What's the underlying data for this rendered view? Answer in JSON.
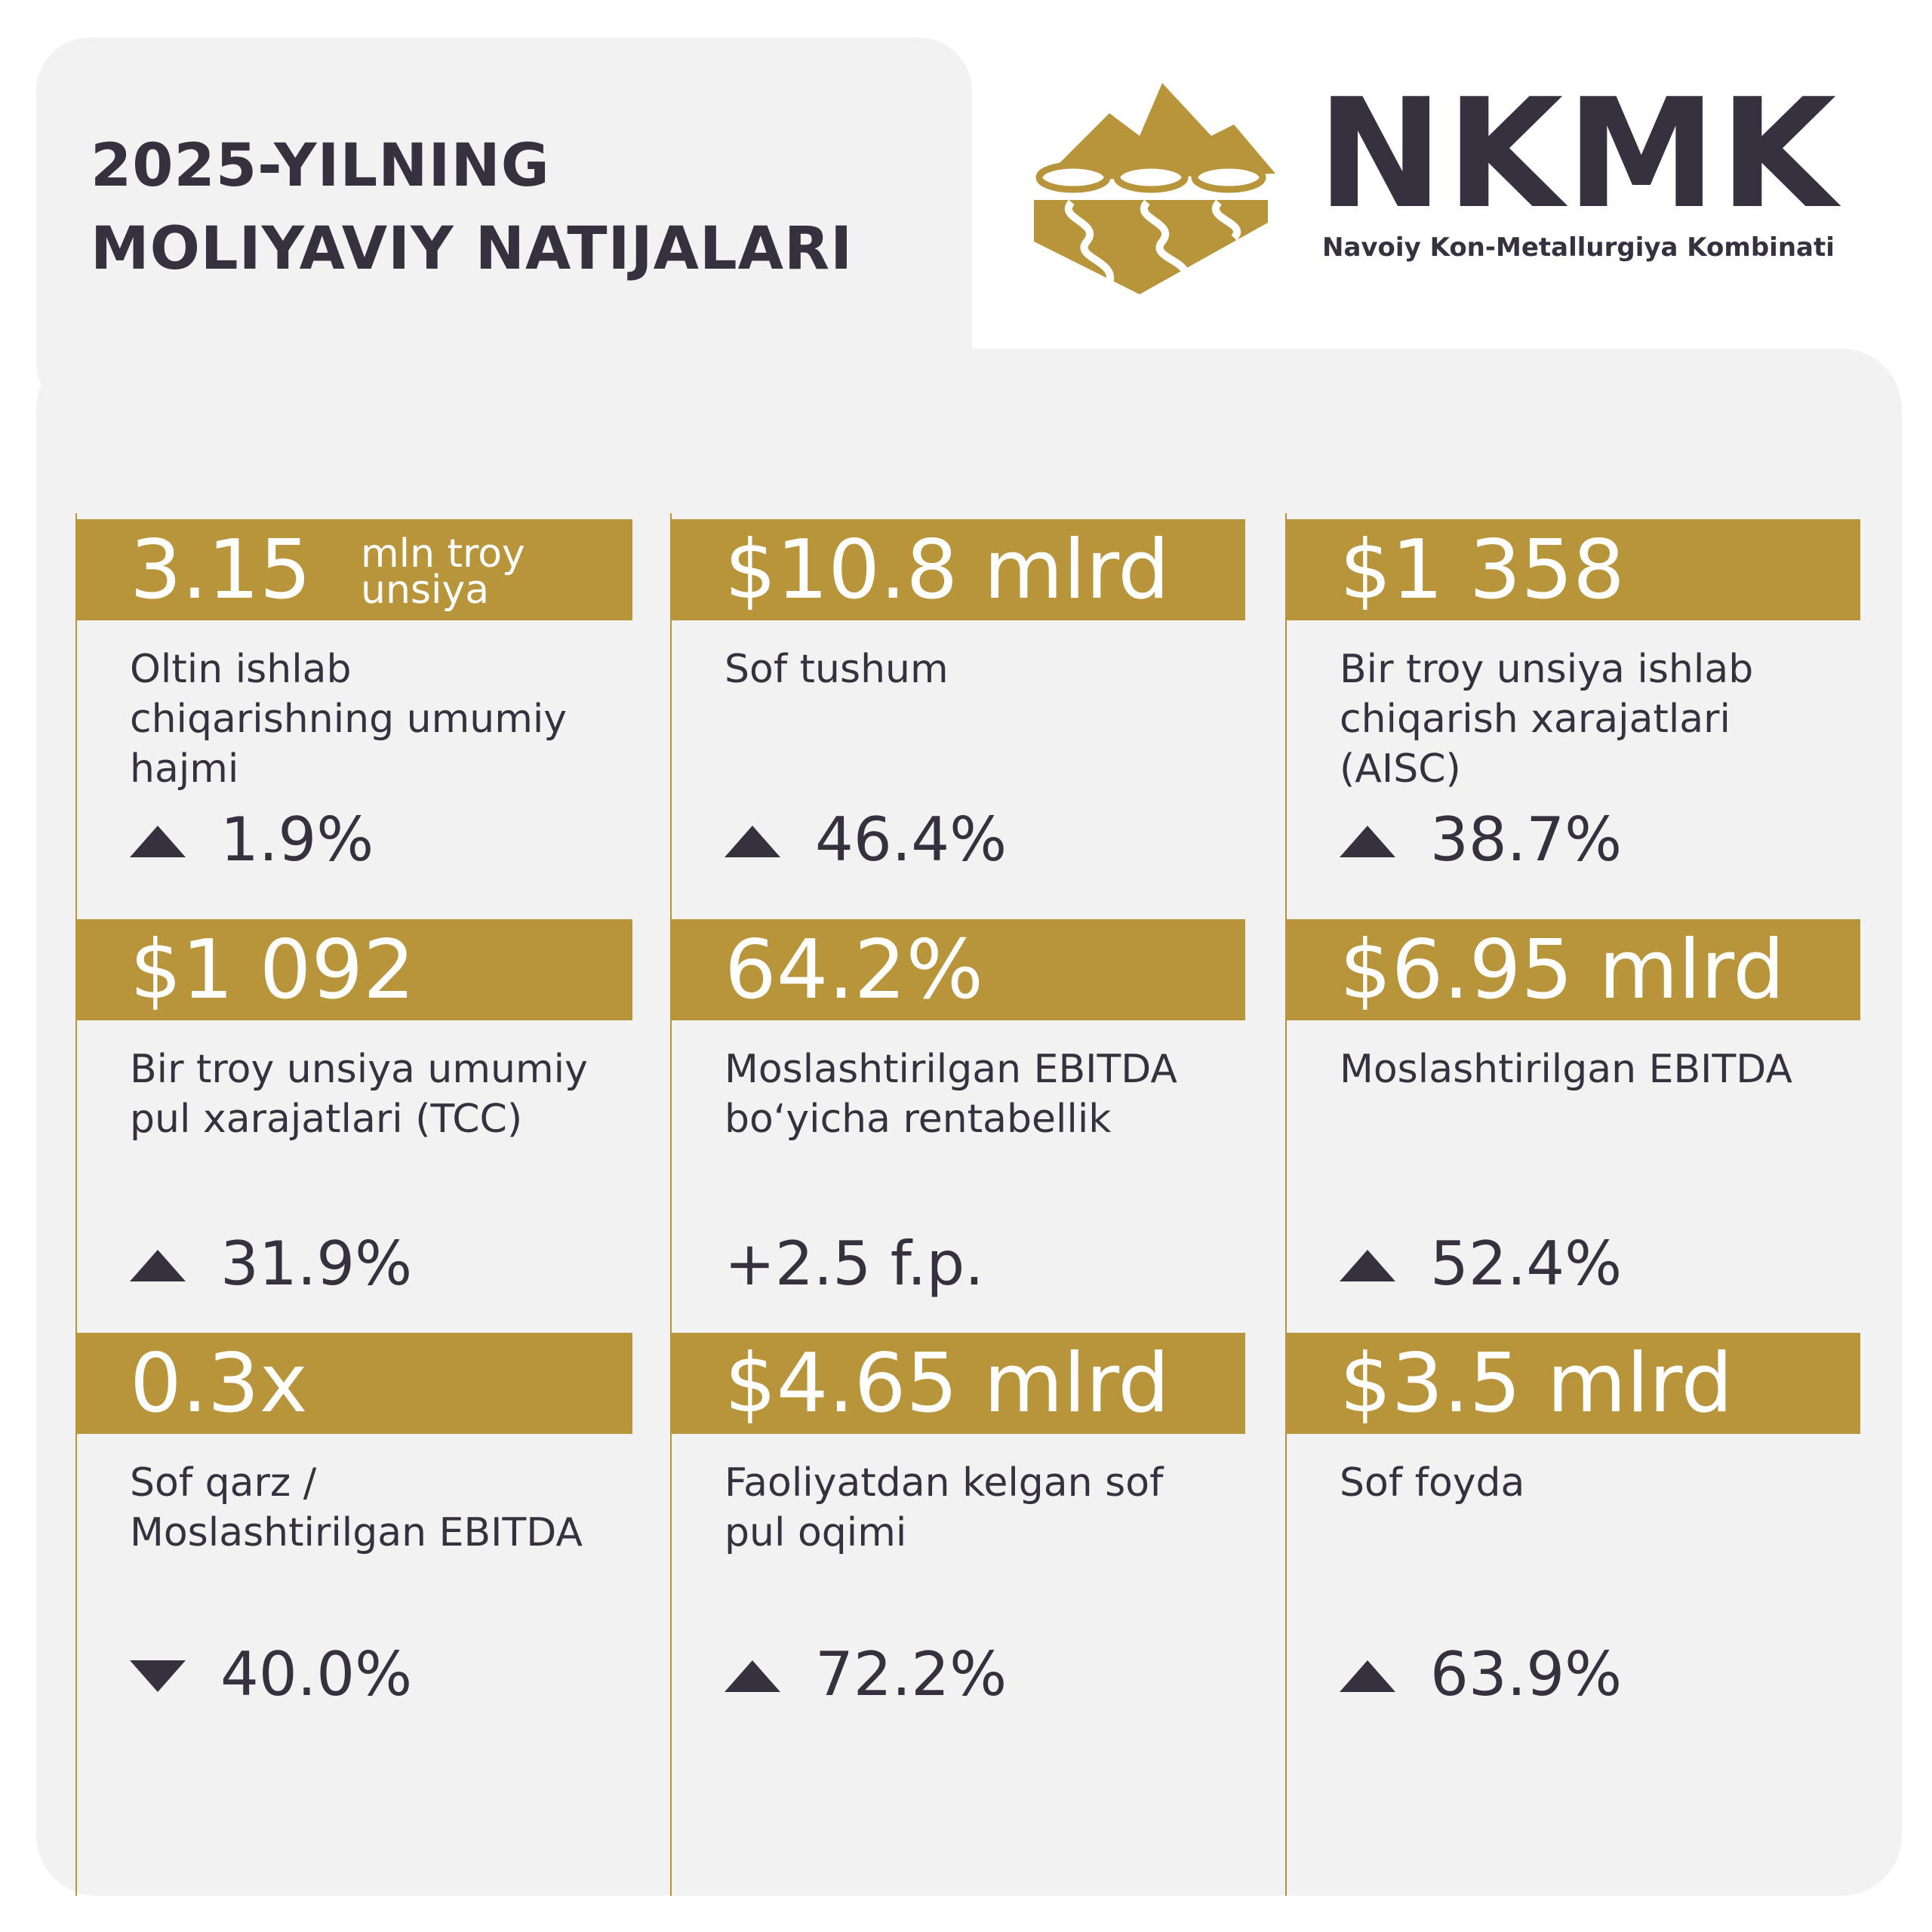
{
  "header": {
    "title_line1": "2025-YILNING",
    "title_line2": "MOLIYAVIY NATIJALARI"
  },
  "brand": {
    "logo_text": "NKMK",
    "logo_subtitle": "Navoiy Kon-Metallurgiya Kombinati",
    "logo_icon": "mountain-gold-logo",
    "colors": {
      "gold": "#b8953a",
      "dark": "#35313f",
      "panel": "#f2f2f2"
    }
  },
  "cards": [
    {
      "value": "3.15",
      "unit": "mln troy unsiya",
      "desc": "Oltin ishlab chiqarishning umumiy hajmi",
      "direction": "up",
      "change": "1.9%"
    },
    {
      "value": "$10.8 mlrd",
      "desc": "Sof tushum",
      "direction": "up",
      "change": "46.4%"
    },
    {
      "value": "$1 358",
      "desc": "Bir troy unsiya ishlab chiqarish xarajatlari (AISC)",
      "direction": "up",
      "change": "38.7%"
    },
    {
      "value": "$1 092",
      "desc": "Bir troy unsiya umumiy pul xarajatlari (TCC)",
      "direction": "up",
      "change": "31.9%"
    },
    {
      "value": "64.2%",
      "desc": "Moslashtirilgan EBITDA bo‘yicha rentabellik",
      "direction": "none",
      "change": "+2.5 f.p."
    },
    {
      "value": "$6.95 mlrd",
      "desc": "Moslashtirilgan EBITDA",
      "direction": "up",
      "change": "52.4%"
    },
    {
      "value": "0.3x",
      "desc": "Sof qarz / Moslashtirilgan EBITDA",
      "direction": "down",
      "change": "40.0%"
    },
    {
      "value": "$4.65 mlrd",
      "desc": "Faoliyatdan kelgan sof pul oqimi",
      "direction": "up",
      "change": "72.2%"
    },
    {
      "value": "$3.5 mlrd",
      "desc": "Sof foyda",
      "direction": "up",
      "change": "63.9%"
    }
  ]
}
